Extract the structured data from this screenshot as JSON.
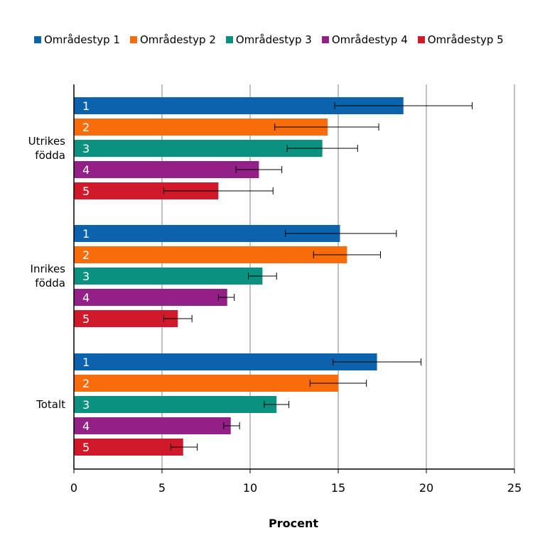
{
  "chart_data": {
    "type": "bar",
    "orientation": "horizontal",
    "xlabel": "Procent",
    "xlim": [
      0,
      25
    ],
    "xticks": [
      0,
      5,
      10,
      15,
      20,
      25
    ],
    "grid": "vertical",
    "legend_position": "top",
    "categories": [
      "Utrikes\nfödda",
      "Inrikes\nfödda",
      "Totalt"
    ],
    "series": [
      {
        "name": "Områdestyp 1",
        "label": "1",
        "color": "#0B63AE",
        "values": [
          18.7,
          15.1,
          17.2
        ],
        "err_low": [
          14.8,
          12.0,
          14.7
        ],
        "err_high": [
          22.6,
          18.3,
          19.7
        ]
      },
      {
        "name": "Områdestyp 2",
        "label": "2",
        "color": "#F96C0C",
        "values": [
          14.4,
          15.5,
          15.0
        ],
        "err_low": [
          11.4,
          13.6,
          13.4
        ],
        "err_high": [
          17.3,
          17.4,
          16.6
        ]
      },
      {
        "name": "Områdestyp 3",
        "label": "3",
        "color": "#0A9180",
        "values": [
          14.1,
          10.7,
          11.5
        ],
        "err_low": [
          12.1,
          9.9,
          10.8
        ],
        "err_high": [
          16.1,
          11.5,
          12.2
        ]
      },
      {
        "name": "Områdestyp 4",
        "label": "4",
        "color": "#932087",
        "values": [
          10.5,
          8.7,
          8.9
        ],
        "err_low": [
          9.2,
          8.2,
          8.5
        ],
        "err_high": [
          11.8,
          9.1,
          9.4
        ]
      },
      {
        "name": "Områdestyp 5",
        "label": "5",
        "color": "#D0192A",
        "values": [
          8.2,
          5.9,
          6.2
        ],
        "err_low": [
          5.1,
          5.1,
          5.5
        ],
        "err_high": [
          11.3,
          6.7,
          7.0
        ]
      }
    ]
  }
}
